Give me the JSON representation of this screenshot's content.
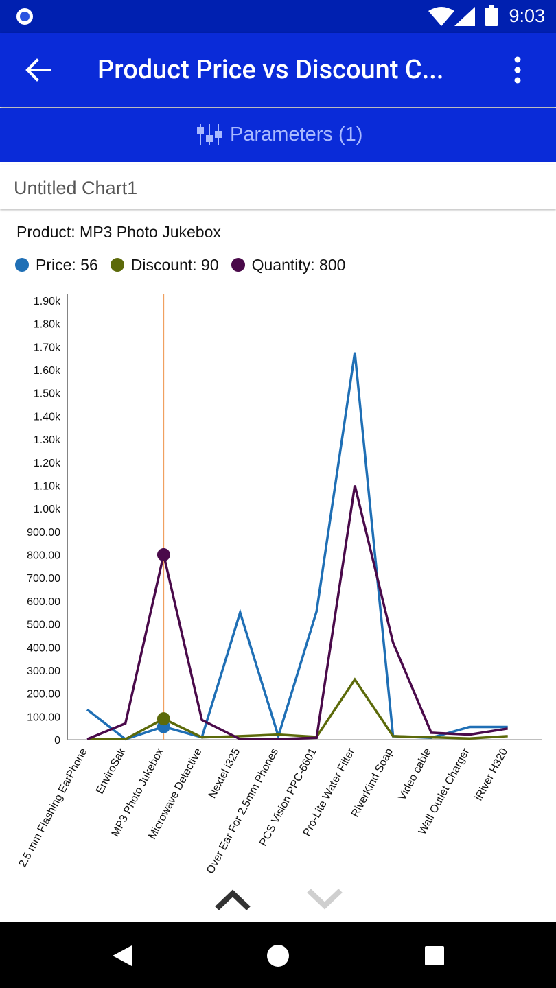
{
  "status_bar": {
    "time": "9:03"
  },
  "app_bar": {
    "title": "Product Price vs Discount C..."
  },
  "parameters": {
    "label": "Parameters (1)"
  },
  "chart_header": {
    "title": "Untitled Chart1"
  },
  "selection": {
    "product_text": "Product: MP3 Photo Jukebox",
    "price_text": "Price: 56",
    "discount_text": "Discount: 90",
    "quantity_text": "Quantity: 800",
    "selected_index": 2
  },
  "colors": {
    "price": "#1f6fb5",
    "discount": "#5c6a0a",
    "quantity": "#4a0a4a",
    "crosshair": "#f0a060"
  },
  "chart_data": {
    "type": "line",
    "title": "",
    "xlabel": "",
    "ylabel": "",
    "ylim": [
      0,
      1900
    ],
    "y_ticks": [
      "0",
      "100.00",
      "200.00",
      "300.00",
      "400.00",
      "500.00",
      "600.00",
      "700.00",
      "800.00",
      "900.00",
      "1.00k",
      "1.10k",
      "1.20k",
      "1.30k",
      "1.40k",
      "1.50k",
      "1.60k",
      "1.70k",
      "1.80k",
      "1.90k"
    ],
    "categories": [
      "2.5 mm Flashing EarPhone",
      "EnviroSak",
      "MP3 Photo Jukebox",
      "Microwave Detective",
      "Nextel i325",
      "Over Ear For 2.5mm Phones",
      "PCS Vision PPC-6601",
      "Pro-Lite Water Filter",
      "RiverKind Soap",
      "Video cable",
      "Wall Outlet Charger",
      "iRiver H320"
    ],
    "series": [
      {
        "name": "Price",
        "values": [
          130,
          2,
          56,
          10,
          550,
          15,
          555,
          1675,
          15,
          8,
          55,
          55
        ]
      },
      {
        "name": "Discount",
        "values": [
          2,
          2,
          90,
          10,
          15,
          22,
          12,
          260,
          15,
          10,
          5,
          15
        ]
      },
      {
        "name": "Quantity",
        "values": [
          2,
          70,
          800,
          85,
          2,
          2,
          8,
          1100,
          420,
          30,
          22,
          48
        ]
      }
    ]
  }
}
